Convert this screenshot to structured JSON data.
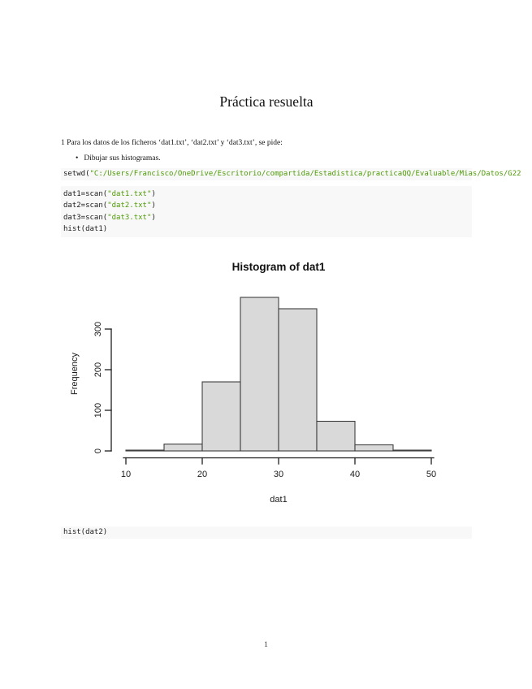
{
  "document": {
    "title": "Práctica resuelta",
    "intro": "1 Para los datos de los ficheros ‘dat1.txt’, ‘dat2.txt’ y ‘dat3.txt’, se pide:",
    "bullet_marker": "•",
    "bullet_text": "Dibujar sus histogramas.",
    "page_number": "1"
  },
  "colors": {
    "code_background": "#f8f8f8",
    "code_plain": "#1a1a1a",
    "code_string": "#4e9a06",
    "bar_fill": "#d9d9d9",
    "bar_border": "#3f3f3f"
  },
  "code_blocks": [
    {
      "id": "setwd-block",
      "lines": [
        [
          {
            "t": "setwd(",
            "k": "plain"
          },
          {
            "t": "\"C:/Users/Francisco/OneDrive/Escritorio/compartida/Estadistica/practicaQQ/Evaluable/Mias/Datos/G22",
            "k": "string"
          }
        ]
      ]
    },
    {
      "id": "scan-block",
      "lines": [
        [
          {
            "t": "dat1=scan(",
            "k": "plain"
          },
          {
            "t": "\"dat1.txt\"",
            "k": "string"
          },
          {
            "t": ")",
            "k": "plain"
          }
        ],
        [
          {
            "t": "dat2=scan(",
            "k": "plain"
          },
          {
            "t": "\"dat2.txt\"",
            "k": "string"
          },
          {
            "t": ")",
            "k": "plain"
          }
        ],
        [
          {
            "t": "dat3=scan(",
            "k": "plain"
          },
          {
            "t": "\"dat3.txt\"",
            "k": "string"
          },
          {
            "t": ")",
            "k": "plain"
          }
        ],
        [
          {
            "t": "hist(dat1)",
            "k": "plain"
          }
        ]
      ]
    },
    {
      "id": "hist2-block",
      "lines": [
        [
          {
            "t": "hist(dat2)",
            "k": "plain"
          }
        ]
      ]
    }
  ],
  "chart_data": {
    "type": "bar",
    "subtype": "histogram",
    "title": "Histogram of dat1",
    "xlabel": "dat1",
    "ylabel": "Frequency",
    "bin_edges": [
      10,
      15,
      20,
      25,
      30,
      35,
      40,
      45,
      50
    ],
    "counts": [
      2,
      17,
      170,
      378,
      350,
      73,
      15,
      2
    ],
    "xlim": [
      10,
      50
    ],
    "ylim": [
      0,
      300
    ],
    "x_ticks": [
      10,
      20,
      30,
      40,
      50
    ],
    "y_ticks": [
      0,
      100,
      200,
      300
    ],
    "grid": false,
    "legend": null
  }
}
